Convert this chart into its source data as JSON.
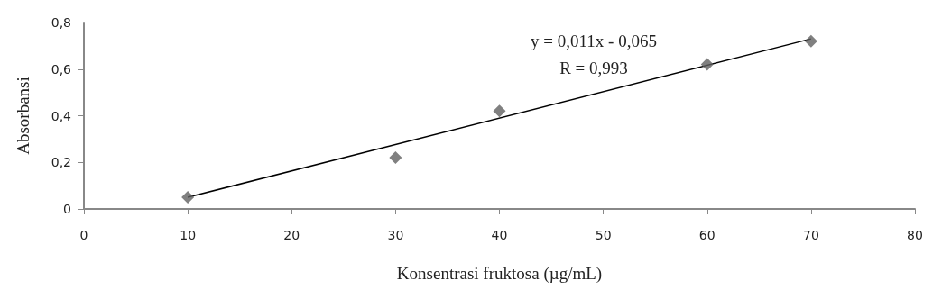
{
  "chart_data": {
    "type": "scatter",
    "xlabel": "Konsentrasi fruktosa (µg/mL)",
    "ylabel": "Absorbansi",
    "series": [
      {
        "color": "#606060",
        "x": [
          10,
          30,
          40,
          60,
          70
        ],
        "values": [
          0.05,
          0.22,
          0.42,
          0.62,
          0.72
        ],
        "marker": "diamond"
      },
      {
        "type": "line",
        "color": "#000000",
        "x": [
          10,
          70
        ],
        "values": [
          0.05,
          0.73
        ],
        "marker": "none",
        "line_style": "solid"
      }
    ],
    "annotations": [
      "y = 0,011x - 0,065",
      "R = 0,993"
    ],
    "xlim": [
      0,
      80
    ],
    "xticks": [
      0,
      10,
      20,
      30,
      40,
      50,
      60,
      70,
      80
    ],
    "ylim": [
      0,
      0.8
    ],
    "yticks": [
      0,
      {
        "value": 0.2,
        "label": "0,2"
      },
      {
        "value": 0.4,
        "label": "0,4"
      },
      {
        "value": 0.6,
        "label": "0,6"
      },
      {
        "value": 0.8,
        "label": "0,8"
      }
    ],
    "grid": false
  }
}
